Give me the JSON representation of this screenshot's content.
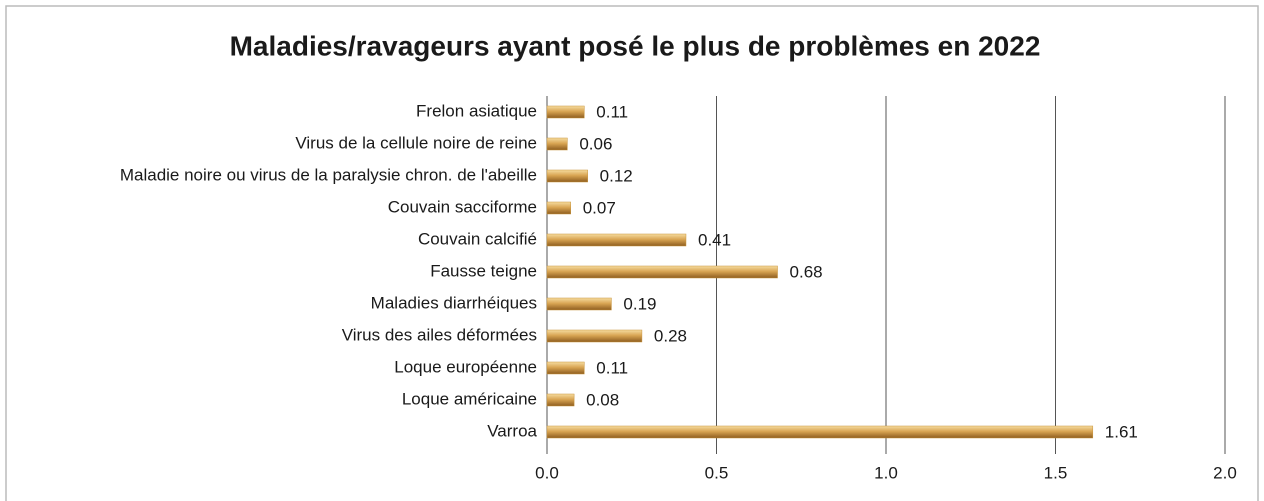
{
  "chart_data": {
    "type": "hbar",
    "title": "Maladies/ravageurs ayant posé le plus de problèmes en 2022",
    "categories": [
      "Frelon asiatique",
      "Virus de la cellule noire de reine",
      "Maladie noire ou virus de la paralysie chron. de l'abeille",
      "Couvain sacciforme",
      "Couvain calcifié",
      "Fausse teigne",
      "Maladies diarrhéiques",
      "Virus des ailes déformées",
      "Loque européenne",
      "Loque américaine",
      "Varroa"
    ],
    "values": [
      0.11,
      0.06,
      0.12,
      0.07,
      0.41,
      0.68,
      0.19,
      0.28,
      0.11,
      0.08,
      1.61
    ],
    "color": "#c8943c",
    "xlim": [
      0,
      2
    ],
    "xticks": [
      {
        "value": 0,
        "label": "0.0"
      },
      0.5,
      {
        "value": 1,
        "label": "1.0"
      },
      1.5,
      {
        "value": 2,
        "label": "2.0"
      }
    ],
    "grid": true
  }
}
